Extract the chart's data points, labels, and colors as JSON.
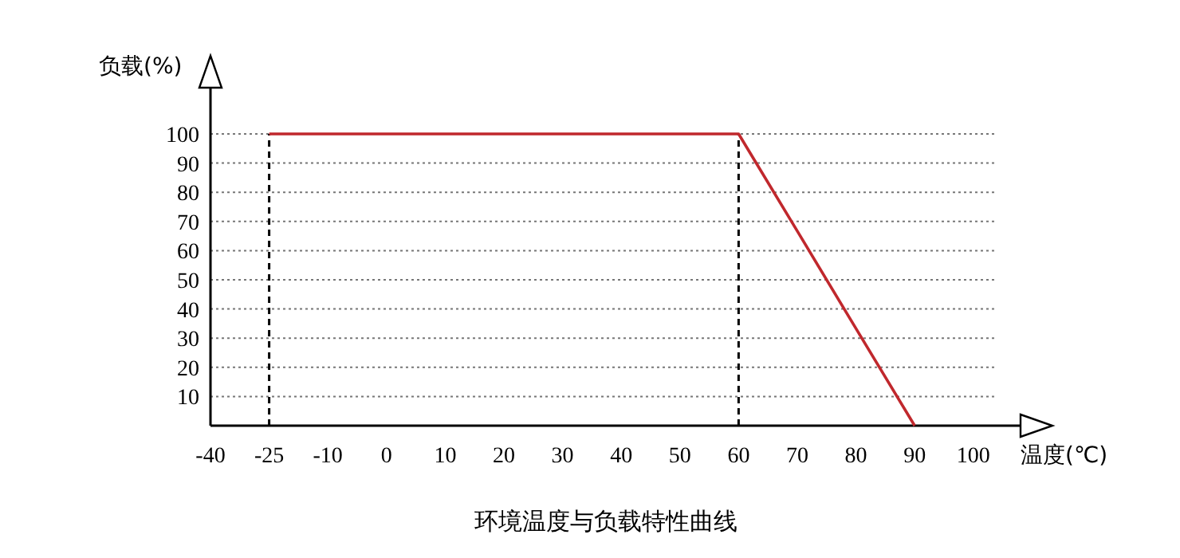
{
  "chart_data": {
    "type": "line",
    "title": "环境温度与负载特性曲线",
    "xlabel": "温度(℃)",
    "ylabel": "负载(%)",
    "categories": [
      "-40",
      "-25",
      "-10",
      "0",
      "10",
      "20",
      "30",
      "40",
      "50",
      "60",
      "70",
      "80",
      "90",
      "100"
    ],
    "series": [
      {
        "color": "#c0282d",
        "values": [
          null,
          100,
          100,
          100,
          100,
          100,
          100,
          100,
          100,
          100,
          66.7,
          33.3,
          0,
          null
        ]
      }
    ],
    "ylim": [
      0,
      100
    ],
    "yticks": [
      {
        "value": 0,
        "label": null
      },
      10,
      20,
      30,
      40,
      50,
      60,
      70,
      80,
      90,
      100
    ],
    "grid": "y",
    "marker": "none",
    "line_style": "solid",
    "ref_lines": [
      {
        "axis": "x",
        "value": "-25",
        "color": "#000000",
        "line_style": "dashed"
      },
      {
        "axis": "x",
        "value": "60",
        "color": "#000000",
        "line_style": "dashed"
      }
    ]
  }
}
